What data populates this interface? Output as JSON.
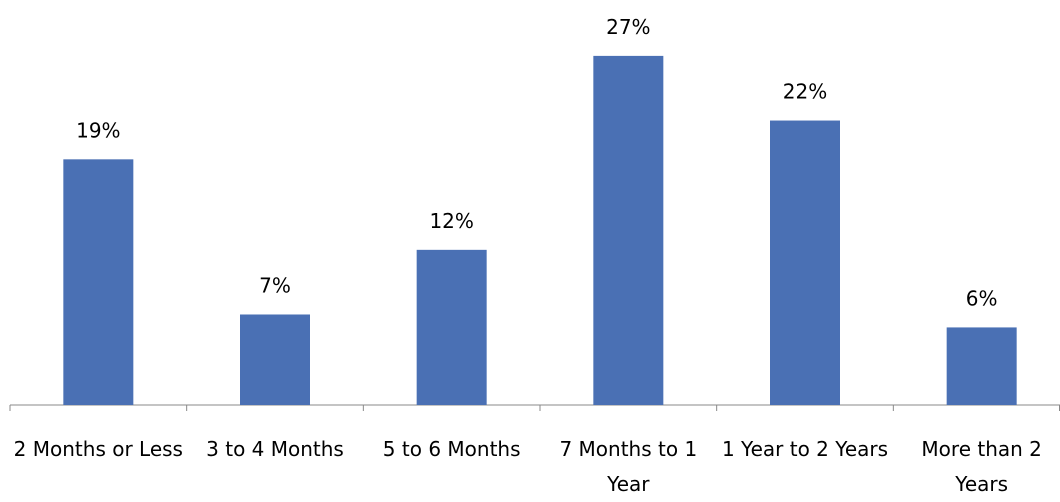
{
  "chart_data": {
    "type": "bar",
    "categories": [
      "2 Months or Less",
      "3 to 4 Months",
      "5 to 6 Months",
      "7 Months to 1 Year",
      "1 Year to 2 Years",
      "More than 2 Years"
    ],
    "values": [
      19,
      7,
      12,
      27,
      22,
      6
    ],
    "value_labels": [
      "19%",
      "7%",
      "12%",
      "27%",
      "22%",
      "6%"
    ],
    "color": "#4a70b4"
  }
}
